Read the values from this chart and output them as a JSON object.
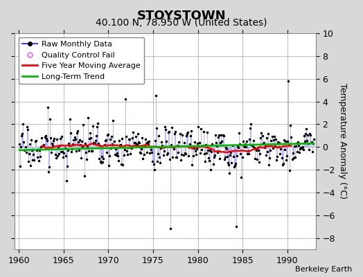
{
  "title": "STOYSTOWN",
  "subtitle": "40.100 N, 78.950 W (United States)",
  "credit": "Berkeley Earth",
  "xmin": 1959.5,
  "xmax": 1993.2,
  "ymin": -9,
  "ymax": 10,
  "yticks": [
    -8,
    -6,
    -4,
    -2,
    0,
    2,
    4,
    6,
    8,
    10
  ],
  "xticks": [
    1960,
    1965,
    1970,
    1975,
    1980,
    1985,
    1990
  ],
  "ylabel": "Temperature Anomaly (°C)",
  "background_color": "#d8d8d8",
  "plot_bg_color": "#ffffff",
  "grid_color": "#bbbbbb",
  "raw_color": "#4444ff",
  "raw_stem_color": "#aaaaff",
  "ma_color": "#ff0000",
  "trend_color": "#00bb00",
  "qc_color": "#ff44ff",
  "title_fontsize": 13,
  "subtitle_fontsize": 10,
  "tick_fontsize": 9,
  "ylabel_fontsize": 9,
  "legend_fontsize": 8,
  "credit_fontsize": 8
}
